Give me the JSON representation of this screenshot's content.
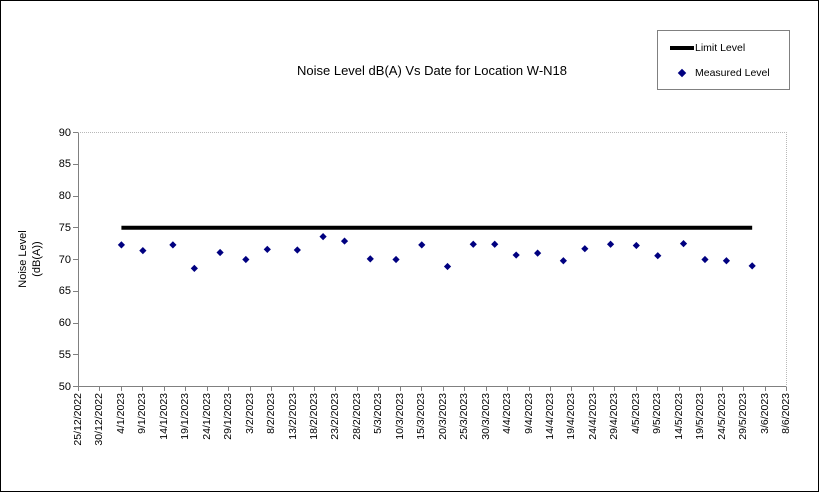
{
  "frame": {
    "background": "#ffffff",
    "border_color": "#000000"
  },
  "chart_data": {
    "type": "scatter",
    "title": "Noise Level dB(A) Vs Date for Location W-N18",
    "grid": "off",
    "legend_position": "top-right",
    "y_axis": {
      "title_line1": "Noise Level",
      "title_line2": "(dB(A))",
      "min": 50,
      "max": 90,
      "tick_step": 5,
      "ticks": [
        50,
        55,
        60,
        65,
        70,
        75,
        80,
        85,
        90
      ]
    },
    "x_axis": {
      "start_date": "25/12/2022",
      "end_date": "8/6/2023",
      "span_days": 165,
      "label_interval_days": 5,
      "labels": [
        "25/12/2022",
        "30/12/2022",
        "4/1/2023",
        "9/1/2023",
        "14/1/2023",
        "19/1/2023",
        "24/1/2023",
        "29/1/2023",
        "3/2/2023",
        "8/2/2023",
        "13/2/2023",
        "18/2/2023",
        "23/2/2023",
        "28/2/2023",
        "5/3/2023",
        "10/3/2023",
        "15/3/2023",
        "20/3/2023",
        "25/3/2023",
        "30/3/2023",
        "4/4/2023",
        "9/4/2023",
        "14/4/2023",
        "19/4/2023",
        "24/4/2023",
        "29/4/2023",
        "4/5/2023",
        "9/5/2023",
        "14/5/2023",
        "19/5/2023",
        "24/5/2023",
        "29/5/2023",
        "3/6/2023",
        "8/6/2023"
      ]
    },
    "legend": {
      "items": [
        {
          "label": "Limit Level",
          "marker": "line",
          "color": "#000000"
        },
        {
          "label": "Measured Level",
          "marker": "diamond",
          "color": "#000080"
        }
      ]
    },
    "series": [
      {
        "name": "Limit Level",
        "type": "line",
        "color": "#000000",
        "value": 75,
        "start_day": 10,
        "end_day": 157
      },
      {
        "name": "Measured Level",
        "type": "scatter",
        "color": "#000080",
        "points": [
          {
            "date": "4/1/2023",
            "day": 10,
            "value": 72.3
          },
          {
            "date": "9/1/2023",
            "day": 15,
            "value": 71.4
          },
          {
            "date": "16/1/2023",
            "day": 22,
            "value": 72.3
          },
          {
            "date": "21/1/2023",
            "day": 27,
            "value": 68.6
          },
          {
            "date": "27/1/2023",
            "day": 33,
            "value": 71.1
          },
          {
            "date": "2/2/2023",
            "day": 39,
            "value": 70.0
          },
          {
            "date": "7/2/2023",
            "day": 44,
            "value": 71.6
          },
          {
            "date": "14/2/2023",
            "day": 51,
            "value": 71.5
          },
          {
            "date": "20/2/2023",
            "day": 57,
            "value": 73.6
          },
          {
            "date": "25/2/2023",
            "day": 62,
            "value": 72.9
          },
          {
            "date": "3/3/2023",
            "day": 68,
            "value": 70.1
          },
          {
            "date": "9/3/2023",
            "day": 74,
            "value": 70.0
          },
          {
            "date": "15/3/2023",
            "day": 80,
            "value": 72.3
          },
          {
            "date": "21/3/2023",
            "day": 86,
            "value": 68.9
          },
          {
            "date": "27/3/2023",
            "day": 92,
            "value": 72.4
          },
          {
            "date": "1/4/2023",
            "day": 97,
            "value": 72.4
          },
          {
            "date": "6/4/2023",
            "day": 102,
            "value": 70.7
          },
          {
            "date": "11/4/2023",
            "day": 107,
            "value": 71.0
          },
          {
            "date": "17/4/2023",
            "day": 113,
            "value": 69.8
          },
          {
            "date": "22/4/2023",
            "day": 118,
            "value": 71.7
          },
          {
            "date": "28/4/2023",
            "day": 124,
            "value": 72.4
          },
          {
            "date": "4/5/2023",
            "day": 130,
            "value": 72.2
          },
          {
            "date": "9/5/2023",
            "day": 135,
            "value": 70.6
          },
          {
            "date": "15/5/2023",
            "day": 141,
            "value": 72.5
          },
          {
            "date": "20/5/2023",
            "day": 146,
            "value": 70.0
          },
          {
            "date": "25/5/2023",
            "day": 151,
            "value": 69.8
          },
          {
            "date": "31/5/2023",
            "day": 157,
            "value": 69.0
          }
        ]
      }
    ]
  }
}
